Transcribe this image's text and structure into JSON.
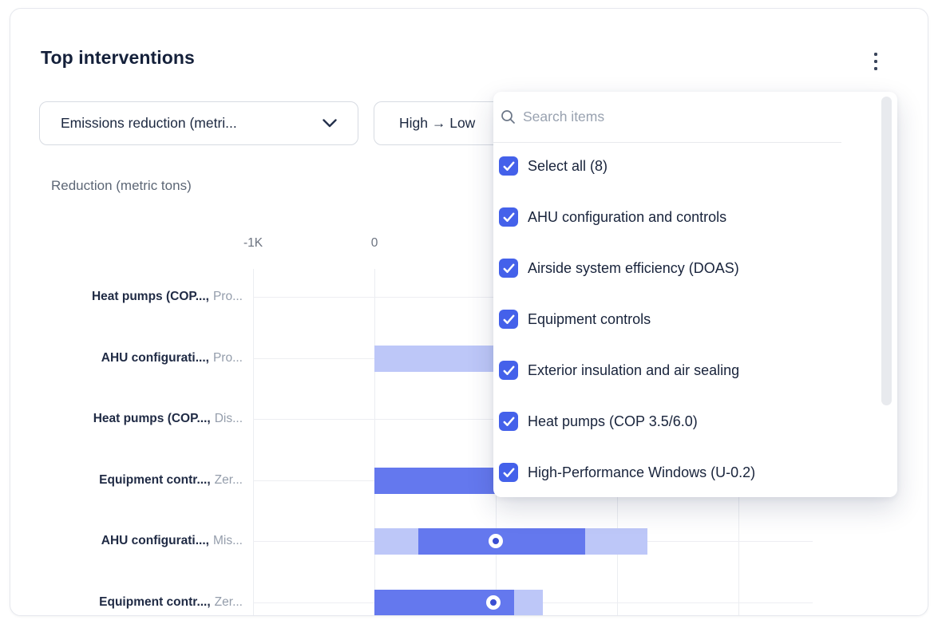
{
  "card": {
    "title": "Top interventions",
    "menu_icon": "kebab-menu-icon"
  },
  "filters": {
    "metric": {
      "label": "Emissions reduction (metri..."
    },
    "sort": {
      "label": "High → Low"
    }
  },
  "chart_data": {
    "type": "bar",
    "orientation": "horizontal",
    "ylabel": "Reduction (metric tons)",
    "x_ticks": [
      {
        "label": "-1K",
        "value": -1000
      },
      {
        "label": "0",
        "value": 0
      }
    ],
    "x_gridline_values": [
      -1000,
      0,
      1000,
      2000,
      3000
    ],
    "x_range": [
      -1000,
      3600
    ],
    "grid": true,
    "rows": [
      {
        "label_bold": "Heat pumps (COP...,",
        "label_muted": "Pro...",
        "segments": [],
        "marker": null
      },
      {
        "label_bold": "AHU configurati...,",
        "label_muted": "Pro...",
        "segments": [
          {
            "from": 0,
            "to": 2250,
            "shade": "light"
          }
        ],
        "marker": null
      },
      {
        "label_bold": "Heat pumps (COP...,",
        "label_muted": "Dis...",
        "segments": [],
        "marker": null
      },
      {
        "label_bold": "Equipment contr...,",
        "label_muted": "Zer...",
        "segments": [
          {
            "from": 0,
            "to": 1250,
            "shade": "solid"
          }
        ],
        "marker": null
      },
      {
        "label_bold": "AHU configurati...,",
        "label_muted": "Mis...",
        "segments": [
          {
            "from": 0,
            "to": 360,
            "shade": "light"
          },
          {
            "from": 360,
            "to": 1740,
            "shade": "solid"
          },
          {
            "from": 1740,
            "to": 2250,
            "shade": "light"
          }
        ],
        "marker": 1000
      },
      {
        "label_bold": "Equipment contr...,",
        "label_muted": "Zer...",
        "segments": [
          {
            "from": 0,
            "to": 1150,
            "shade": "solid"
          },
          {
            "from": 1150,
            "to": 1390,
            "shade": "light"
          }
        ],
        "marker": 980
      }
    ]
  },
  "dropdown_panel": {
    "search_placeholder": "Search items",
    "items": [
      {
        "label": "Select all (8)",
        "checked": true
      },
      {
        "label": "AHU configuration and controls",
        "checked": true
      },
      {
        "label": "Airside system efficiency (DOAS)",
        "checked": true
      },
      {
        "label": "Equipment controls",
        "checked": true
      },
      {
        "label": "Exterior insulation and air sealing",
        "checked": true
      },
      {
        "label": "Heat pumps (COP 3.5/6.0)",
        "checked": true
      },
      {
        "label": "High-Performance Windows (U-0.2)",
        "checked": true
      }
    ]
  },
  "colors": {
    "bar_solid": "#6478ee",
    "bar_light": "#bdc7f8",
    "marker": "#3a4ed2",
    "checkbox": "#4461ea",
    "title_text": "#14203a",
    "gridline": "#ebedf1"
  }
}
